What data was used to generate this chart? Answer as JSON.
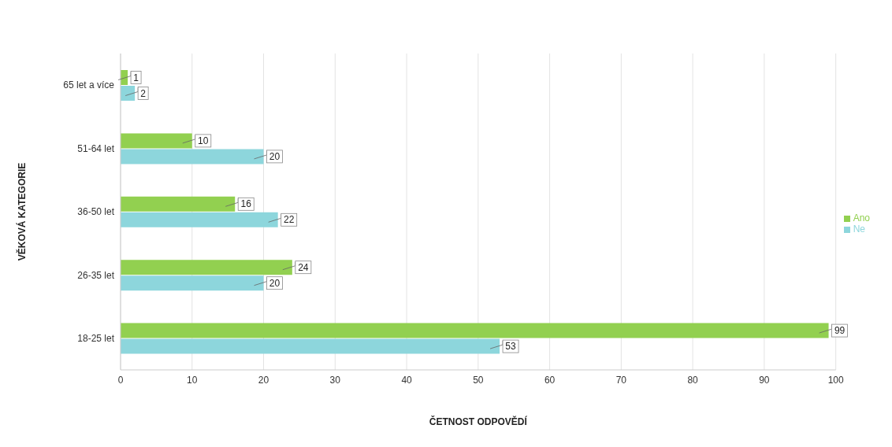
{
  "chart_data": {
    "type": "bar",
    "orientation": "horizontal",
    "xlabel": "ČETNOST ODPOVĚDÍ",
    "ylabel": "VĚKOVÁ KATEGORIE",
    "categories": [
      "65 let a více",
      "51-64 let",
      "36-50 let",
      "26-35 let",
      "18-25 let"
    ],
    "series": [
      {
        "name": "Ano",
        "color": "#92d050",
        "values": [
          1,
          10,
          16,
          24,
          99
        ]
      },
      {
        "name": "Ne",
        "color": "#8dd6dc",
        "values": [
          2,
          20,
          22,
          20,
          53
        ]
      }
    ],
    "xlim": [
      0,
      100
    ],
    "xticks": [
      0,
      10,
      20,
      30,
      40,
      50,
      60,
      70,
      80,
      90,
      100
    ],
    "grid": "x",
    "legend": "right",
    "data_labels": true
  }
}
